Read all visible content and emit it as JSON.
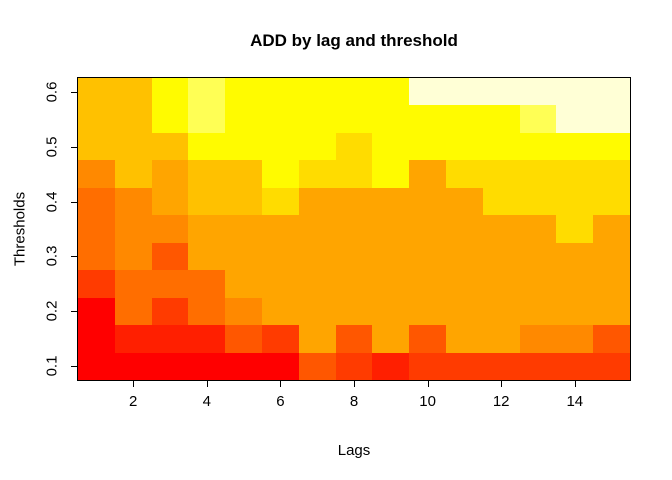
{
  "title": "ADD by lag and threshold",
  "xlabel": "Lags",
  "ylabel": "Thresholds",
  "chart_data": {
    "type": "heatmap",
    "title": "ADD by lag and threshold",
    "xlabel": "Lags",
    "ylabel": "Thresholds",
    "x_values": [
      1,
      2,
      3,
      4,
      5,
      6,
      7,
      8,
      9,
      10,
      11,
      12,
      13,
      14,
      15
    ],
    "y_values_top_to_bottom": [
      0.6,
      0.55,
      0.5,
      0.45,
      0.4,
      0.35,
      0.3,
      0.25,
      0.2,
      0.15,
      0.1
    ],
    "x_range": [
      0.5,
      15.5
    ],
    "y_range": [
      0.075,
      0.625
    ],
    "x_ticks": [
      "2",
      "4",
      "6",
      "8",
      "10",
      "12",
      "14"
    ],
    "y_ticks": [
      "0.6",
      "0.5",
      "0.4",
      "0.3",
      "0.2",
      "0.1"
    ],
    "grid": false,
    "legend": "none",
    "palette_low_to_high": [
      "#FF0000",
      "#FF1F00",
      "#FF3B00",
      "#FF5700",
      "#FF6E00",
      "#FF8900",
      "#FFA500",
      "#FFC100",
      "#FFDC00",
      "#FFFB00",
      "#FFFF55",
      "#FFFFD6"
    ],
    "values_palette_index_rows_top_to_bottom": [
      [
        7,
        7,
        9,
        10,
        9,
        9,
        9,
        9,
        9,
        11,
        11,
        11,
        11,
        11,
        11
      ],
      [
        7,
        7,
        9,
        10,
        9,
        9,
        9,
        9,
        9,
        9,
        9,
        9,
        10,
        11,
        11
      ],
      [
        7,
        7,
        7,
        9,
        9,
        9,
        9,
        8,
        9,
        9,
        9,
        9,
        9,
        9,
        9
      ],
      [
        5,
        7,
        6,
        7,
        7,
        9,
        8,
        8,
        9,
        6,
        8,
        8,
        8,
        8,
        8
      ],
      [
        4,
        5,
        6,
        7,
        7,
        8,
        6,
        6,
        6,
        6,
        6,
        8,
        8,
        8,
        8
      ],
      [
        4,
        5,
        5,
        6,
        6,
        6,
        6,
        6,
        6,
        6,
        6,
        6,
        6,
        8,
        6
      ],
      [
        4,
        5,
        3,
        6,
        6,
        6,
        6,
        6,
        6,
        6,
        6,
        6,
        6,
        6,
        6
      ],
      [
        2,
        4,
        4,
        4,
        6,
        6,
        6,
        6,
        6,
        6,
        6,
        6,
        6,
        6,
        6
      ],
      [
        0,
        4,
        2,
        4,
        5,
        6,
        6,
        6,
        6,
        6,
        6,
        6,
        6,
        6,
        6
      ],
      [
        0,
        1,
        1,
        1,
        3,
        2,
        6,
        3,
        6,
        3,
        6,
        6,
        5,
        5,
        3
      ],
      [
        0,
        0,
        0,
        0,
        0,
        0,
        3,
        2,
        1,
        2,
        2,
        2,
        2,
        2,
        2
      ]
    ]
  }
}
